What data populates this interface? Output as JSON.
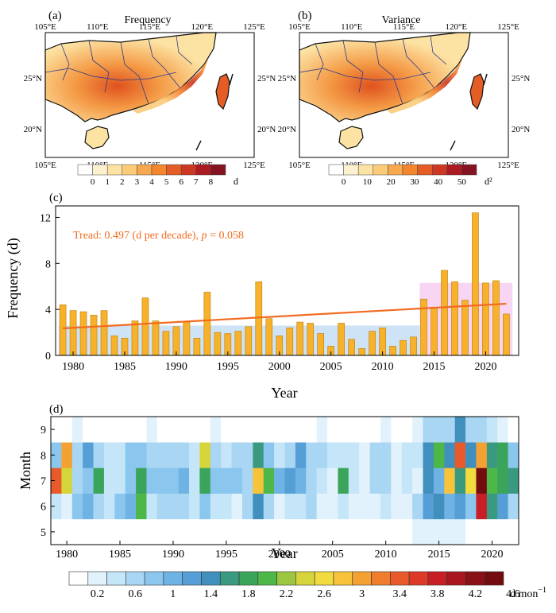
{
  "colors": {
    "bar": "#f7b12a",
    "bar_edge": "#b97d10",
    "trend": "#f26b21",
    "period_low": "#cfe3f6",
    "period_high": "#f8d6f3",
    "land": "#fdf1cf",
    "coast": "#111111",
    "province": "#2b3a8a"
  },
  "chart_data": [
    {
      "type": "map",
      "panel_label": "(a)",
      "title": "Frequency",
      "lon_ticks": [
        "105°E",
        "110°E",
        "115°E",
        "120°E",
        "125°E"
      ],
      "lat_ticks": [
        "25°N",
        "20°N"
      ],
      "colorbar": {
        "ticks": [
          "0",
          "1",
          "2",
          "3",
          "4",
          "5",
          "6",
          "7",
          "8"
        ],
        "unit": "d",
        "colors": [
          "#ffffff",
          "#fdf1cf",
          "#fde3a3",
          "#fbcb7a",
          "#f8a94f",
          "#f4862d",
          "#e55d24",
          "#ce3823",
          "#ad1b22",
          "#841421"
        ]
      }
    },
    {
      "type": "map",
      "panel_label": "(b)",
      "title": "Variance",
      "lon_ticks": [
        "105°E",
        "110°E",
        "115°E",
        "120°E",
        "125°E"
      ],
      "lat_ticks": [
        "25°N",
        "20°N"
      ],
      "colorbar": {
        "ticks": [
          "0",
          "10",
          "20",
          "30",
          "40",
          "50"
        ],
        "unit": "d²",
        "colors": [
          "#ffffff",
          "#fdf1cf",
          "#fde3a3",
          "#fbcb7a",
          "#f8a94f",
          "#f4862d",
          "#e55d24",
          "#ce3823",
          "#ad1b22",
          "#841421"
        ]
      }
    },
    {
      "type": "bar",
      "panel_label": "(c)",
      "xlabel": "Year",
      "ylabel": "Frequency (d)",
      "annotation": {
        "prefix": "Tread: 0.497 (d per decade), ",
        "p_label": "p",
        "suffix": " = 0.058"
      },
      "x": [
        1979,
        1980,
        1981,
        1982,
        1983,
        1984,
        1985,
        1986,
        1987,
        1988,
        1989,
        1990,
        1991,
        1992,
        1993,
        1994,
        1995,
        1996,
        1997,
        1998,
        1999,
        2000,
        2001,
        2002,
        2003,
        2004,
        2005,
        2006,
        2007,
        2008,
        2009,
        2010,
        2011,
        2012,
        2013,
        2014,
        2015,
        2016,
        2017,
        2018,
        2019,
        2020,
        2021,
        2022
      ],
      "values": [
        4.4,
        3.9,
        3.8,
        3.5,
        3.9,
        1.7,
        1.5,
        3.0,
        5.0,
        3.0,
        2.1,
        2.5,
        2.9,
        1.5,
        5.5,
        2.0,
        1.9,
        2.1,
        2.5,
        6.4,
        3.2,
        1.7,
        2.4,
        2.9,
        2.8,
        1.9,
        0.8,
        2.8,
        1.4,
        0.6,
        2.1,
        2.4,
        0.8,
        1.3,
        1.6,
        4.9,
        4.2,
        7.4,
        6.4,
        4.8,
        12.4,
        6.3,
        6.5,
        3.6
      ],
      "xticks": [
        "1980",
        "1985",
        "1990",
        "1995",
        "2000",
        "2005",
        "2010",
        "2015",
        "2020"
      ],
      "yticks": [
        "0",
        "4",
        "8",
        "12"
      ],
      "ylim": [
        0,
        13
      ],
      "xlim": [
        1978.3,
        2023.2
      ],
      "trend": {
        "x": [
          1979,
          2022
        ],
        "y": [
          2.35,
          4.49
        ]
      },
      "shaded_periods": [
        {
          "x": [
            1978.6,
            2013.6
          ],
          "y": [
            0,
            2.6
          ],
          "color_key": "period_low"
        },
        {
          "x": [
            2013.6,
            2022.6
          ],
          "y": [
            0,
            6.3
          ],
          "color_key": "period_high"
        }
      ]
    },
    {
      "type": "heatmap",
      "panel_label": "(d)",
      "xlabel": "Year",
      "ylabel": "Month",
      "years": [
        1979,
        1980,
        1981,
        1982,
        1983,
        1984,
        1985,
        1986,
        1987,
        1988,
        1989,
        1990,
        1991,
        1992,
        1993,
        1994,
        1995,
        1996,
        1997,
        1998,
        1999,
        2000,
        2001,
        2002,
        2003,
        2004,
        2005,
        2006,
        2007,
        2008,
        2009,
        2010,
        2011,
        2012,
        2013,
        2014,
        2015,
        2016,
        2017,
        2018,
        2019,
        2020,
        2021,
        2022
      ],
      "months": [
        5,
        6,
        7,
        8,
        9
      ],
      "xticks": [
        "1980",
        "1985",
        "1990",
        "1995",
        "2000",
        "2005",
        "2010",
        "2015",
        "2020"
      ],
      "yticks": [
        "5",
        "6",
        "7",
        "8",
        "9"
      ],
      "values": {
        "5": [
          0,
          0,
          0,
          0,
          0,
          0,
          0,
          0,
          0,
          0,
          0,
          0,
          0,
          0,
          0,
          0,
          0,
          0,
          0,
          0,
          0,
          0,
          0,
          0,
          0,
          0,
          0,
          0,
          0,
          0,
          0,
          0,
          0,
          0,
          0.2,
          0.2,
          0.2,
          0.2,
          0.2,
          0,
          0,
          0,
          0,
          0
        ],
        "6": [
          0.4,
          0.2,
          0.8,
          1.0,
          0.6,
          0.4,
          0.8,
          1.0,
          2.0,
          0.4,
          0.6,
          0.6,
          0.6,
          0.4,
          0.8,
          0.4,
          0.4,
          0.2,
          0.6,
          1.4,
          0.6,
          0.2,
          0.4,
          0.4,
          0.6,
          0.2,
          0.2,
          0.4,
          0.2,
          0.2,
          0.2,
          0.4,
          0.2,
          0.2,
          0.6,
          1.2,
          1.4,
          1.0,
          1.2,
          0.8,
          3.8,
          1.6,
          1.2,
          0.6
        ],
        "7": [
          3.4,
          2.4,
          0.6,
          0.8,
          1.8,
          0.4,
          0.4,
          0.8,
          1.8,
          0.8,
          0.8,
          0.8,
          1.0,
          0.4,
          1.8,
          0.8,
          0.8,
          0.8,
          0.6,
          2.8,
          2.0,
          1.0,
          1.2,
          1.0,
          0.6,
          0.4,
          0.2,
          1.8,
          0.4,
          0.2,
          0.6,
          0.6,
          0.2,
          0.4,
          0.2,
          1.4,
          1.0,
          2.8,
          1.6,
          2.6,
          4.8,
          2.0,
          1.8,
          1.6
        ],
        "8": [
          0.8,
          3.0,
          0.6,
          1.2,
          0.6,
          0.4,
          0.4,
          0.8,
          0.8,
          0.6,
          0.6,
          0.6,
          0.6,
          0.4,
          2.4,
          0.6,
          0.4,
          0.6,
          0.6,
          1.6,
          0.8,
          0.4,
          0.6,
          1.2,
          0.6,
          0.6,
          0.4,
          0.4,
          0.4,
          0.2,
          0.6,
          0.6,
          0.2,
          0.4,
          0.4,
          1.4,
          2.0,
          1.4,
          3.4,
          1.4,
          3.0,
          1.6,
          1.8,
          0.8
        ],
        "9": [
          0,
          0,
          0.2,
          0,
          0,
          0,
          0,
          0,
          0,
          0.2,
          0,
          0,
          0,
          0,
          0,
          0.2,
          0,
          0,
          0,
          0,
          0,
          0,
          0,
          0,
          0,
          0.2,
          0,
          0,
          0,
          0,
          0,
          0.2,
          0,
          0,
          0.2,
          0.6,
          0.6,
          0.6,
          1.4,
          0.6,
          0.6,
          0.4,
          0.2,
          0
        ]
      },
      "colorbar": {
        "ticks": [
          "0.2",
          "0.6",
          "1",
          "1.4",
          "1.8",
          "2.2",
          "2.6",
          "3",
          "3.4",
          "3.8",
          "4.2",
          "4.6"
        ],
        "unit": "d mon",
        "unit_exp": "−1",
        "colors": [
          "#ffffff",
          "#e2f2fc",
          "#c5e5f8",
          "#a9d6f3",
          "#8ac6ee",
          "#6eb3e4",
          "#559ed6",
          "#418fbd",
          "#3a9a80",
          "#3aa55a",
          "#4db848",
          "#9cc640",
          "#d5d43a",
          "#f1db3e",
          "#f7c33b",
          "#f4a133",
          "#ee7e2e",
          "#e85a29",
          "#dc3a26",
          "#c71f25",
          "#a8161f",
          "#8a1116",
          "#720c10"
        ]
      }
    }
  ]
}
